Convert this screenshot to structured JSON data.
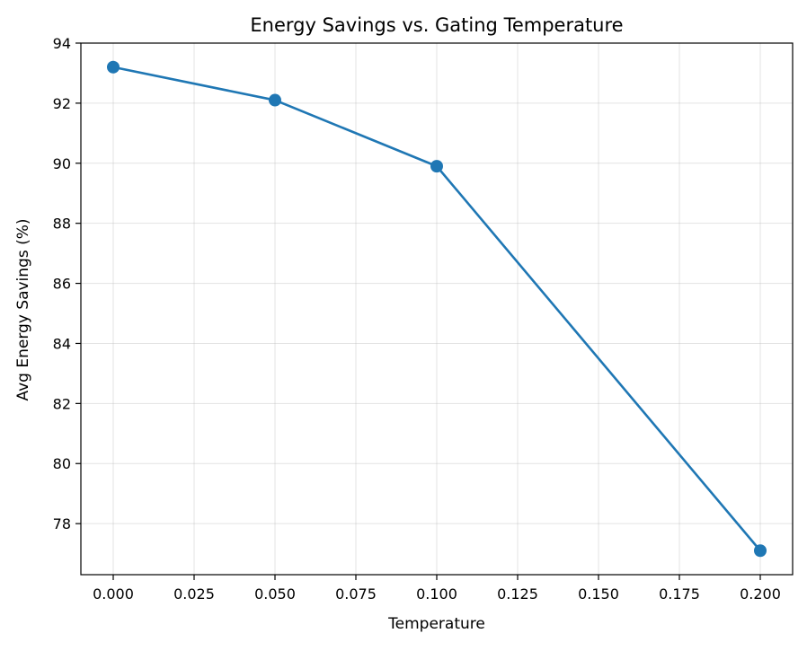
{
  "chart_data": {
    "type": "line",
    "title": "Energy Savings vs. Gating Temperature",
    "xlabel": "Temperature",
    "ylabel": "Avg Energy Savings (%)",
    "x": [
      0.0,
      0.05,
      0.1,
      0.2
    ],
    "series": [
      {
        "values": [
          93.2,
          92.1,
          89.9,
          77.1
        ],
        "color": "#1f77b4",
        "marker": "circle"
      }
    ],
    "xlim": [
      -0.01,
      0.21
    ],
    "ylim": [
      76.3,
      94.0
    ],
    "xticks": [
      0.0,
      0.025,
      0.05,
      0.075,
      0.1,
      0.125,
      0.15,
      0.175,
      0.2
    ],
    "xtick_labels": [
      "0.000",
      "0.025",
      "0.050",
      "0.075",
      "0.100",
      "0.125",
      "0.150",
      "0.175",
      "0.200"
    ],
    "yticks": [
      78,
      80,
      82,
      84,
      86,
      88,
      90,
      92,
      94
    ],
    "ytick_labels": [
      "78",
      "80",
      "82",
      "84",
      "86",
      "88",
      "90",
      "92",
      "94"
    ],
    "grid": true,
    "legend": "none"
  }
}
